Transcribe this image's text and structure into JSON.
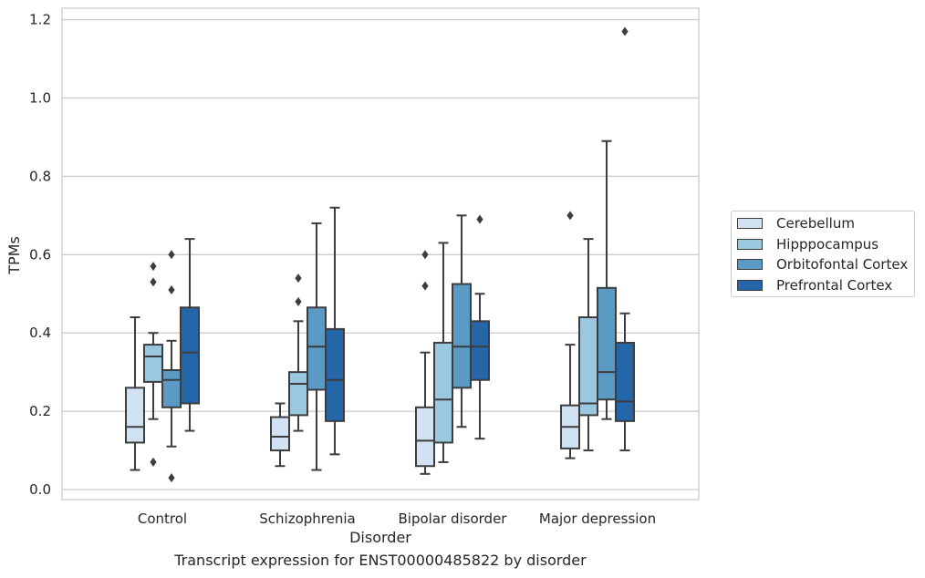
{
  "chart_data": {
    "type": "box",
    "title": "",
    "caption": "Transcript expression for ENST00000485822 by disorder",
    "xlabel": "Disorder",
    "ylabel": "TPMs",
    "ylim": [
      -0.025,
      1.23
    ],
    "yticks": [
      "0.0",
      "0.2",
      "0.4",
      "0.6",
      "0.8",
      "1.0",
      "1.2"
    ],
    "ytick_values": [
      0.0,
      0.2,
      0.4,
      0.6,
      0.8,
      1.0,
      1.2
    ],
    "grid": true,
    "legend_position": "right",
    "categories": [
      "Control",
      "Schizophrenia",
      "Bipolar disorder",
      "Major depression"
    ],
    "series": [
      {
        "name": "Cerebellum",
        "color": "#d1e2f2",
        "boxes": [
          {
            "whisker_low": 0.05,
            "q1": 0.12,
            "median": 0.16,
            "q3": 0.26,
            "whisker_high": 0.44,
            "outliers": []
          },
          {
            "whisker_low": 0.06,
            "q1": 0.1,
            "median": 0.135,
            "q3": 0.185,
            "whisker_high": 0.22,
            "outliers": []
          },
          {
            "whisker_low": 0.04,
            "q1": 0.06,
            "median": 0.125,
            "q3": 0.21,
            "whisker_high": 0.35,
            "outliers": [
              0.52,
              0.6
            ]
          },
          {
            "whisker_low": 0.08,
            "q1": 0.105,
            "median": 0.16,
            "q3": 0.215,
            "whisker_high": 0.37,
            "outliers": [
              0.7
            ]
          }
        ]
      },
      {
        "name": "Hipppocampus",
        "color": "#9ac8e0",
        "boxes": [
          {
            "whisker_low": 0.18,
            "q1": 0.275,
            "median": 0.34,
            "q3": 0.37,
            "whisker_high": 0.4,
            "outliers": [
              0.07,
              0.53,
              0.57
            ]
          },
          {
            "whisker_low": 0.15,
            "q1": 0.19,
            "median": 0.27,
            "q3": 0.3,
            "whisker_high": 0.43,
            "outliers": [
              0.48,
              0.54
            ]
          },
          {
            "whisker_low": 0.07,
            "q1": 0.12,
            "median": 0.23,
            "q3": 0.375,
            "whisker_high": 0.63,
            "outliers": []
          },
          {
            "whisker_low": 0.1,
            "q1": 0.19,
            "median": 0.22,
            "q3": 0.44,
            "whisker_high": 0.64,
            "outliers": []
          }
        ]
      },
      {
        "name": "Orbitofontal Cortex",
        "color": "#5a9ac5",
        "boxes": [
          {
            "whisker_low": 0.11,
            "q1": 0.21,
            "median": 0.28,
            "q3": 0.305,
            "whisker_high": 0.38,
            "outliers": [
              0.03,
              0.51,
              0.6
            ]
          },
          {
            "whisker_low": 0.05,
            "q1": 0.255,
            "median": 0.365,
            "q3": 0.465,
            "whisker_high": 0.68,
            "outliers": []
          },
          {
            "whisker_low": 0.16,
            "q1": 0.26,
            "median": 0.365,
            "q3": 0.525,
            "whisker_high": 0.7,
            "outliers": []
          },
          {
            "whisker_low": 0.18,
            "q1": 0.23,
            "median": 0.3,
            "q3": 0.515,
            "whisker_high": 0.89,
            "outliers": []
          }
        ]
      },
      {
        "name": "Prefrontal Cortex",
        "color": "#2566a8",
        "boxes": [
          {
            "whisker_low": 0.15,
            "q1": 0.22,
            "median": 0.35,
            "q3": 0.465,
            "whisker_high": 0.64,
            "outliers": []
          },
          {
            "whisker_low": 0.09,
            "q1": 0.175,
            "median": 0.28,
            "q3": 0.41,
            "whisker_high": 0.72,
            "outliers": []
          },
          {
            "whisker_low": 0.13,
            "q1": 0.28,
            "median": 0.365,
            "q3": 0.43,
            "whisker_high": 0.5,
            "outliers": [
              0.69
            ]
          },
          {
            "whisker_low": 0.1,
            "q1": 0.175,
            "median": 0.225,
            "q3": 0.375,
            "whisker_high": 0.45,
            "outliers": [
              1.17
            ]
          }
        ]
      }
    ]
  }
}
